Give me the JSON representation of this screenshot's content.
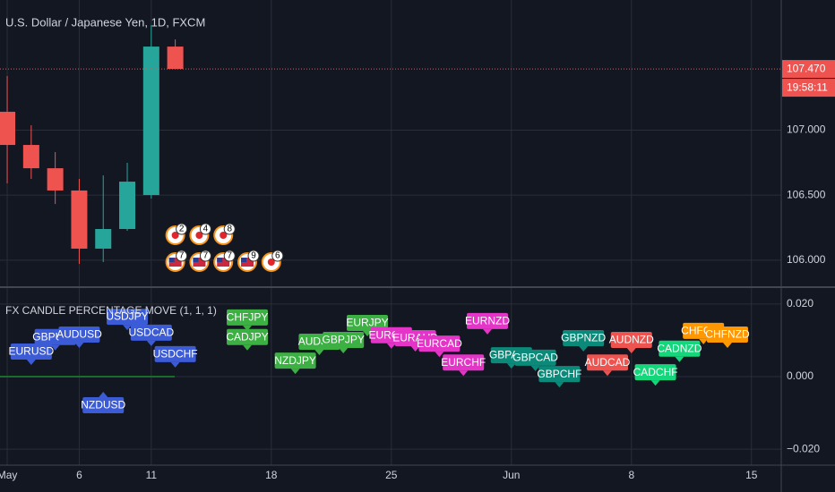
{
  "chart_data": [
    {
      "type": "candlestick",
      "title": "U.S. Dollar / Japanese Yen, 1D, FXCM",
      "x": [
        0,
        1,
        2,
        3,
        4,
        5,
        6,
        7
      ],
      "open": [
        107.141,
        106.886,
        106.707,
        106.536,
        106.089,
        106.24,
        106.501,
        107.642
      ],
      "high": [
        107.416,
        107.037,
        106.831,
        106.625,
        106.652,
        106.749,
        107.807,
        107.697
      ],
      "low": [
        106.591,
        106.625,
        106.432,
        105.972,
        105.986,
        106.226,
        106.474,
        107.47
      ],
      "close": [
        106.886,
        106.707,
        106.536,
        106.089,
        106.24,
        106.604,
        107.642,
        107.47
      ],
      "up_color": "#26a69a",
      "down_color": "#ef5350",
      "price_label": "107.470",
      "countdown": "19:58:11",
      "xlim": [
        -0.3,
        32.24
      ],
      "xticks": [
        {
          "value": 0,
          "label": "May"
        },
        {
          "value": 3,
          "label": "6"
        },
        {
          "value": 6,
          "label": "11"
        },
        {
          "value": 11,
          "label": "18"
        },
        {
          "value": 16,
          "label": "25"
        },
        {
          "value": 21,
          "label": "Jun"
        },
        {
          "value": 26,
          "label": "8"
        },
        {
          "value": 31,
          "label": "15"
        }
      ],
      "ylim": [
        105.8,
        108.0
      ],
      "yticks": [
        {
          "value": 106,
          "label": "106.000"
        },
        {
          "value": 106.5,
          "label": "106.500"
        },
        {
          "value": 107,
          "label": "107.000"
        }
      ],
      "grid": true,
      "events": [
        [
          {
            "x": 7,
            "label": "2",
            "flag": "jp"
          },
          {
            "x": 8,
            "label": "4",
            "flag": "jp"
          },
          {
            "x": 9,
            "label": "8",
            "flag": "jp"
          }
        ],
        [
          {
            "x": 7,
            "label": "7",
            "flag": "us"
          },
          {
            "x": 8,
            "label": "7",
            "flag": "us"
          },
          {
            "x": 9,
            "label": "7",
            "flag": "us"
          },
          {
            "x": 10,
            "label": "9",
            "flag": "us"
          },
          {
            "x": 11,
            "label": "6",
            "flag": "jp"
          }
        ]
      ]
    },
    {
      "type": "labels",
      "title": "FX CANDLE PERCENTAGE MOVE (1, 1, 1)",
      "xlim": [
        -0.3,
        32.24
      ],
      "ylim": [
        -0.0244,
        0.0244
      ],
      "yticks": [
        {
          "value": 0.02,
          "label": "0.020"
        },
        {
          "value": 0,
          "label": "0.000"
        },
        {
          "value": -0.02,
          "label": "−0.020"
        }
      ],
      "grid": true,
      "labels": [
        {
          "text": "EURUSD",
          "x": 1,
          "value": 0.0032,
          "color": "#3c5bd6",
          "pointer": "down"
        },
        {
          "text": "GBPUSD",
          "x": 2,
          "value": 0.0072,
          "color": "#3c5bd6",
          "pointer": "down"
        },
        {
          "text": "AUDUSD",
          "x": 3,
          "value": 0.0079,
          "color": "#3c5bd6",
          "pointer": "down"
        },
        {
          "text": "NZDUSD",
          "x": 4,
          "value": -0.0042,
          "color": "#3c5bd6",
          "pointer": "up"
        },
        {
          "text": "USDJPY",
          "x": 5,
          "value": 0.0128,
          "color": "#3c5bd6",
          "pointer": "down"
        },
        {
          "text": "USDCAD",
          "x": 6,
          "value": 0.0084,
          "color": "#3c5bd6",
          "pointer": "down"
        },
        {
          "text": "USDCHF",
          "x": 7,
          "value": 0.0025,
          "color": "#3c5bd6",
          "pointer": "down"
        },
        {
          "text": "CHFJPY",
          "x": 10,
          "value": 0.0126,
          "color": "#3cb043",
          "pointer": "down"
        },
        {
          "text": "CADJPY",
          "x": 10,
          "value": 0.0072,
          "color": "#3cb043",
          "pointer": "down"
        },
        {
          "text": "NZDJPY",
          "x": 12,
          "value": 0.0007,
          "color": "#3cb043",
          "pointer": "down"
        },
        {
          "text": "AUDJPY",
          "x": 13,
          "value": 0.0059,
          "color": "#3cb043",
          "pointer": "down"
        },
        {
          "text": "GBPJPY",
          "x": 14,
          "value": 0.0064,
          "color": "#3cb043",
          "pointer": "down"
        },
        {
          "text": "EURJPY",
          "x": 15,
          "value": 0.0111,
          "color": "#3cb043",
          "pointer": "down"
        },
        {
          "text": "EURGBP",
          "x": 16,
          "value": 0.0077,
          "color": "#e535c8",
          "pointer": "down"
        },
        {
          "text": "EURAUD",
          "x": 17,
          "value": 0.0069,
          "color": "#e535c8",
          "pointer": "down"
        },
        {
          "text": "EURCAD",
          "x": 18,
          "value": 0.0054,
          "color": "#e535c8",
          "pointer": "down"
        },
        {
          "text": "EURCHF",
          "x": 19,
          "value": 0.0002,
          "color": "#e535c8",
          "pointer": "down"
        },
        {
          "text": "EURNZD",
          "x": 20,
          "value": 0.0116,
          "color": "#e535c8",
          "pointer": "down"
        },
        {
          "text": "GBPAUD",
          "x": 21,
          "value": 0.0022,
          "color": "#0b8a7a",
          "pointer": "down"
        },
        {
          "text": "GBPCAD",
          "x": 22,
          "value": 0.0015,
          "color": "#0b8a7a",
          "pointer": "down"
        },
        {
          "text": "GBPCHF",
          "x": 23,
          "value": -0.003,
          "color": "#0b8a7a",
          "pointer": "down"
        },
        {
          "text": "GBPNZD",
          "x": 24,
          "value": 0.0069,
          "color": "#0b8a7a",
          "pointer": "down"
        },
        {
          "text": "AUDCAD",
          "x": 25,
          "value": 0.0002,
          "color": "#ef5350",
          "pointer": "down"
        },
        {
          "text": "AUDNZD",
          "x": 26,
          "value": 0.0064,
          "color": "#ef5350",
          "pointer": "down"
        },
        {
          "text": "CADCHF",
          "x": 27,
          "value": -0.0025,
          "color": "#14d67a",
          "pointer": "down"
        },
        {
          "text": "CADNZD",
          "x": 28,
          "value": 0.004,
          "color": "#14d67a",
          "pointer": "down"
        },
        {
          "text": "CHFCAD",
          "x": 29,
          "value": 0.0089,
          "color": "#ff9800",
          "pointer": "down"
        },
        {
          "text": "CHFNZD",
          "x": 30,
          "value": 0.0079,
          "color": "#ff9800",
          "pointer": "down"
        }
      ]
    }
  ]
}
